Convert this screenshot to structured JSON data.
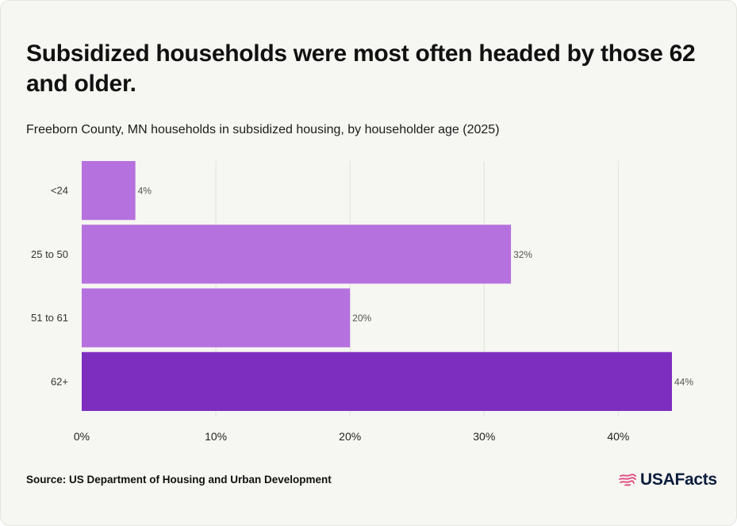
{
  "header": {
    "title": "Subsidized households were most often headed by those 62 and older.",
    "subtitle": "Freeborn County, MN households in subsidized housing, by householder age (2025)"
  },
  "footer": {
    "source": "Source: US Department of Housing and Urban Development",
    "logo_text": "USAFacts"
  },
  "colors": {
    "bar": "#b571dd",
    "highlight_bar": "#7e2ebf",
    "background": "#f6f6f2",
    "logo_flag": "#e0447e"
  },
  "chart_data": {
    "type": "bar",
    "orientation": "horizontal",
    "categories": [
      "<24",
      "25 to 50",
      "51 to 61",
      "62+"
    ],
    "values": [
      4,
      32,
      20,
      44
    ],
    "value_labels": [
      "4%",
      "32%",
      "20%",
      "44%"
    ],
    "highlight": "62+",
    "xlim": [
      0,
      44
    ],
    "x_ticks": [
      0,
      10,
      20,
      30,
      40
    ],
    "x_tick_labels": [
      "0%",
      "10%",
      "20%",
      "30%",
      "40%"
    ],
    "grid": "vertical"
  }
}
